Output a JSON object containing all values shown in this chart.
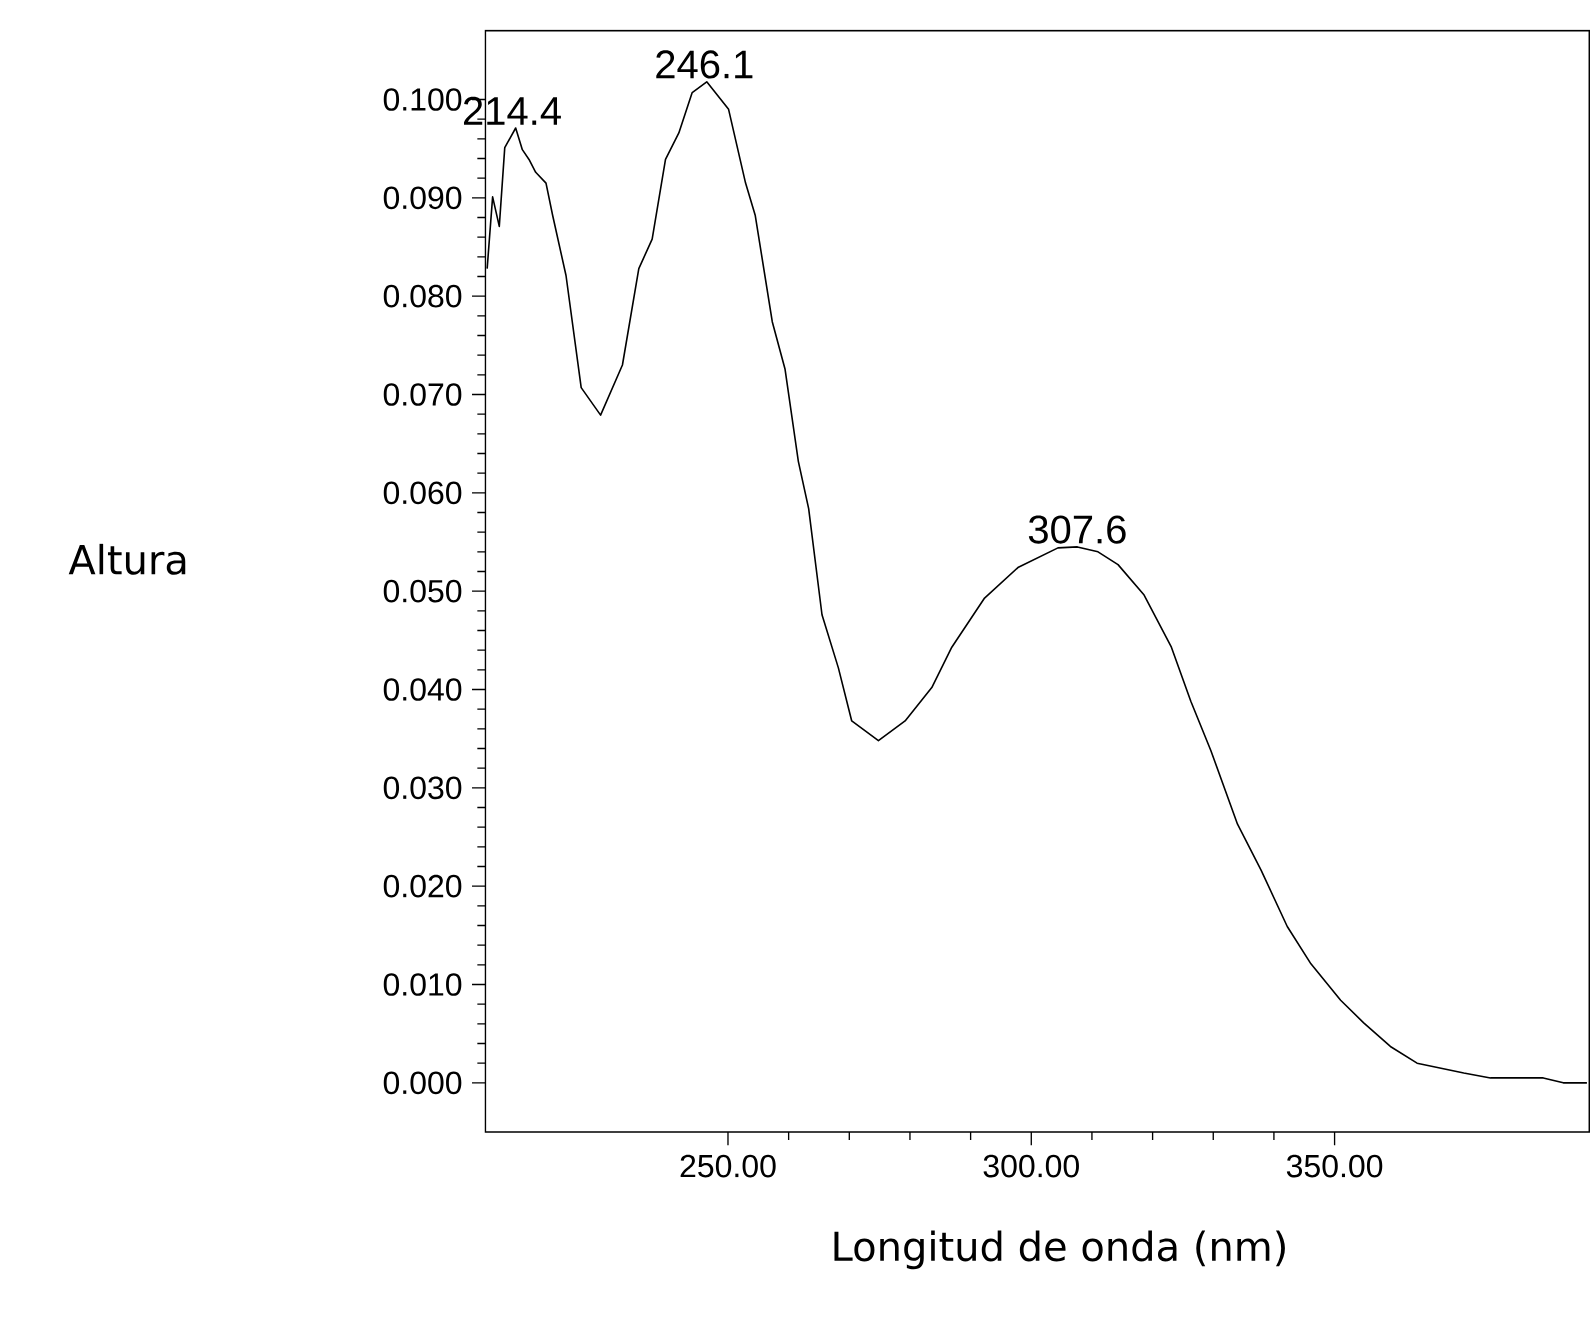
{
  "chart_data": {
    "type": "line",
    "xlabel": "Longitud de onda (nm)",
    "ylabel": "Altura",
    "x": [
      210.3,
      211.2,
      212.3,
      213.2,
      215.0,
      216.1,
      217.2,
      218.3,
      220.0,
      221.1,
      223.3,
      225.8,
      229.0,
      232.6,
      235.3,
      237.5,
      239.7,
      241.9,
      244.1,
      246.5,
      250.1,
      252.9,
      254.5,
      257.3,
      259.4,
      261.6,
      263.3,
      265.5,
      268.2,
      270.4,
      274.8,
      279.2,
      283.6,
      286.9,
      292.3,
      297.8,
      304.4,
      307.6,
      311.0,
      314.3,
      318.6,
      323.1,
      326.3,
      329.6,
      334.0,
      337.9,
      342.2,
      346.1,
      351.0,
      354.8,
      359.2,
      363.6,
      371.3,
      375.7,
      384.4,
      387.7,
      391.6
    ],
    "series": [
      {
        "color": "#000000",
        "values": [
          0.0828,
          0.0901,
          0.0871,
          0.0951,
          0.0971,
          0.0949,
          0.0939,
          0.0926,
          0.0915,
          0.0882,
          0.0821,
          0.0707,
          0.0679,
          0.073,
          0.0828,
          0.0858,
          0.0939,
          0.0966,
          0.1007,
          0.1018,
          0.099,
          0.0915,
          0.0882,
          0.0774,
          0.0726,
          0.0632,
          0.0584,
          0.0476,
          0.0422,
          0.0368,
          0.0348,
          0.0368,
          0.0402,
          0.0443,
          0.0493,
          0.0524,
          0.0544,
          0.0545,
          0.054,
          0.0527,
          0.0496,
          0.0443,
          0.0388,
          0.0338,
          0.0263,
          0.0216,
          0.0159,
          0.0121,
          0.0084,
          0.0061,
          0.0037,
          0.002,
          0.001,
          0.0005,
          0.0005,
          0.0,
          0.0
        ]
      }
    ],
    "xlim": [
      210,
      392
    ],
    "ylim": [
      -0.005,
      0.107
    ],
    "xticks": [
      {
        "value": 250,
        "label": "250.00"
      },
      {
        "value": 300,
        "label": "300.00"
      },
      {
        "value": 350,
        "label": "350.00"
      }
    ],
    "yticks": [
      {
        "value": 0,
        "label": "0.000"
      },
      {
        "value": 0.01,
        "label": "0.010"
      },
      {
        "value": 0.02,
        "label": "0.020"
      },
      {
        "value": 0.03,
        "label": "0.030"
      },
      {
        "value": 0.04,
        "label": "0.040"
      },
      {
        "value": 0.05,
        "label": "0.050"
      },
      {
        "value": 0.06,
        "label": "0.060"
      },
      {
        "value": 0.07,
        "label": "0.070"
      },
      {
        "value": 0.08,
        "label": "0.080"
      },
      {
        "value": 0.09,
        "label": "0.090"
      },
      {
        "value": 0.1,
        "label": "0.100"
      }
    ],
    "annotations": [
      {
        "text": "214.4",
        "x": 214.4,
        "y": 0.0971
      },
      {
        "text": "246.1",
        "x": 246.1,
        "y": 0.1018
      },
      {
        "text": "307.6",
        "x": 307.6,
        "y": 0.0545
      }
    ]
  }
}
